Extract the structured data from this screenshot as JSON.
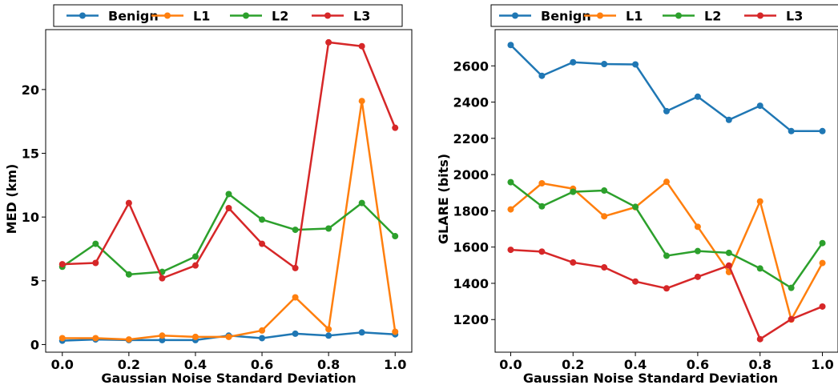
{
  "chart_data": [
    {
      "type": "line",
      "xlabel": "Gaussian Noise Standard Deviation",
      "ylabel": "MED (km)",
      "xlim": [
        -0.05,
        1.05
      ],
      "ylim": [
        -0.6,
        24.7
      ],
      "xticks": [
        0.0,
        0.2,
        0.4,
        0.6,
        0.8,
        1.0
      ],
      "xtick_labels": [
        "0.0",
        "0.2",
        "0.4",
        "0.6",
        "0.8",
        "1.0"
      ],
      "yticks": [
        0,
        5,
        10,
        15,
        20
      ],
      "ytick_labels": [
        "0",
        "5",
        "10",
        "15",
        "20"
      ],
      "grid": false,
      "legend_position": "top, above plot",
      "x": [
        0.0,
        0.1,
        0.2,
        0.3,
        0.4,
        0.5,
        0.6,
        0.7,
        0.8,
        0.9,
        1.0
      ],
      "series": [
        {
          "name": "Benign",
          "color": "#1f77b4",
          "values": [
            0.3,
            0.4,
            0.35,
            0.35,
            0.35,
            0.7,
            0.5,
            0.85,
            0.7,
            0.95,
            0.8
          ]
        },
        {
          "name": "L1",
          "color": "#ff7f0e",
          "values": [
            0.5,
            0.5,
            0.4,
            0.7,
            0.6,
            0.6,
            1.1,
            3.7,
            1.2,
            19.1,
            1.0
          ]
        },
        {
          "name": "L2",
          "color": "#2ca02c",
          "values": [
            6.1,
            7.9,
            5.5,
            5.7,
            6.9,
            11.8,
            9.8,
            9.0,
            9.1,
            11.1,
            8.5
          ]
        },
        {
          "name": "L3",
          "color": "#d62728",
          "values": [
            6.3,
            6.4,
            11.1,
            5.2,
            6.2,
            10.7,
            7.9,
            6.0,
            23.7,
            23.4,
            17.0
          ]
        }
      ]
    },
    {
      "type": "line",
      "xlabel": "Gaussian Noise Standard Deviation",
      "ylabel": "GLARE (bits)",
      "xlim": [
        -0.05,
        1.05
      ],
      "ylim": [
        1020,
        2800
      ],
      "xticks": [
        0.0,
        0.2,
        0.4,
        0.6,
        0.8,
        1.0
      ],
      "xtick_labels": [
        "0.0",
        "0.2",
        "0.4",
        "0.6",
        "0.8",
        "1.0"
      ],
      "yticks": [
        1200,
        1400,
        1600,
        1800,
        2000,
        2200,
        2400,
        2600
      ],
      "ytick_labels": [
        "1200",
        "1400",
        "1600",
        "1800",
        "2000",
        "2200",
        "2400",
        "2600"
      ],
      "grid": false,
      "legend_position": "top, above plot",
      "x": [
        0.0,
        0.1,
        0.2,
        0.3,
        0.4,
        0.5,
        0.6,
        0.7,
        0.8,
        0.9,
        1.0
      ],
      "series": [
        {
          "name": "Benign",
          "color": "#1f77b4",
          "values": [
            2715,
            2545,
            2620,
            2610,
            2608,
            2350,
            2430,
            2302,
            2380,
            2240,
            2240
          ]
        },
        {
          "name": "L1",
          "color": "#ff7f0e",
          "values": [
            1808,
            1952,
            1922,
            1770,
            1820,
            1960,
            1712,
            1462,
            1852,
            1200,
            1512
          ]
        },
        {
          "name": "L2",
          "color": "#2ca02c",
          "values": [
            1958,
            1825,
            1905,
            1912,
            1822,
            1552,
            1578,
            1568,
            1482,
            1375,
            1622
          ]
        },
        {
          "name": "L3",
          "color": "#d62728",
          "values": [
            1585,
            1575,
            1515,
            1488,
            1410,
            1372,
            1436,
            1498,
            1092,
            1202,
            1272
          ]
        }
      ]
    }
  ]
}
